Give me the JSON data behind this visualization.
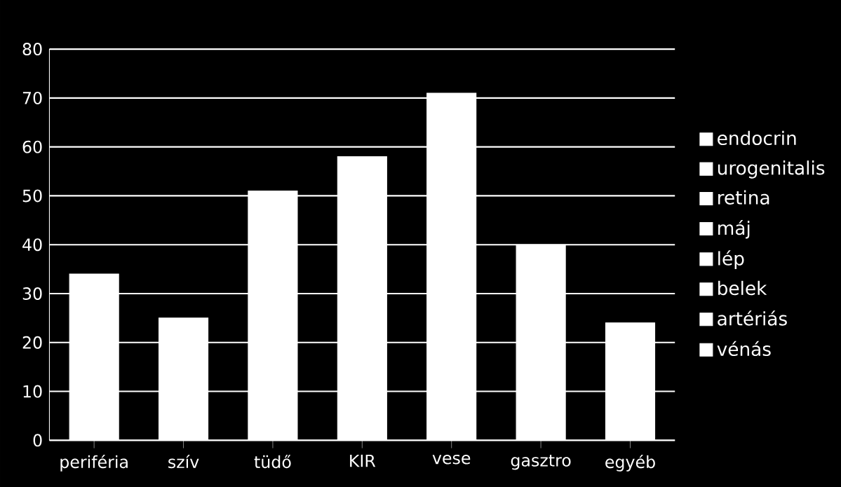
{
  "chart_data": {
    "type": "bar",
    "categories": [
      "periféria",
      "szív",
      "tüdő",
      "KIR",
      "vese",
      "gasztro",
      "egyéb"
    ],
    "series": [
      {
        "name": "endocrin",
        "color": "#ffffff",
        "values": [
          null,
          null,
          null,
          null,
          null,
          null,
          null
        ]
      },
      {
        "name": "urogenitalis",
        "color": "#ffffff",
        "values": [
          null,
          null,
          null,
          null,
          null,
          null,
          null
        ]
      },
      {
        "name": "retina",
        "color": "#ffffff",
        "values": [
          null,
          null,
          null,
          null,
          null,
          null,
          null
        ]
      },
      {
        "name": "máj",
        "color": "#ffffff",
        "values": [
          null,
          null,
          null,
          null,
          null,
          null,
          null
        ]
      },
      {
        "name": "lép",
        "color": "#ffffff",
        "values": [
          null,
          null,
          null,
          null,
          null,
          null,
          null
        ]
      },
      {
        "name": "belek",
        "color": "#ffffff",
        "values": [
          null,
          null,
          null,
          null,
          null,
          null,
          null
        ]
      },
      {
        "name": "artériás",
        "color": "#ffffff",
        "values": [
          null,
          null,
          null,
          null,
          null,
          null,
          null
        ]
      },
      {
        "name": "vénás",
        "color": "#ffffff",
        "values": [
          34,
          25,
          51,
          58,
          71,
          40,
          24
        ]
      }
    ],
    "ylim": [
      0,
      80
    ],
    "yticks": [
      0,
      10,
      20,
      30,
      40,
      50,
      60,
      70,
      80
    ],
    "grid": "y",
    "legend": "right"
  }
}
